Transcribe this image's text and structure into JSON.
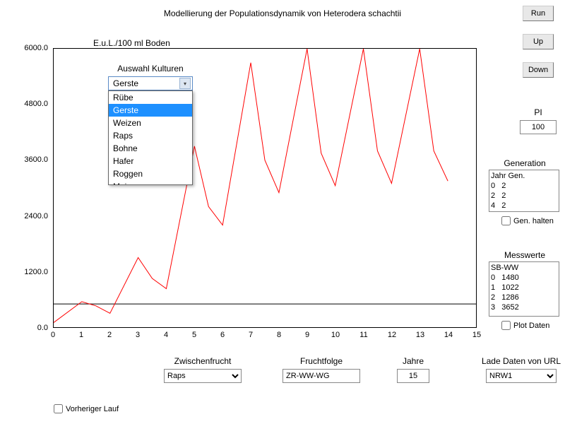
{
  "title": "Modellierung der Populationsdynamik von Heterodera schachtii",
  "ylabel": "E.u.L./100 ml Boden",
  "chart": {
    "type": "line",
    "xlim": [
      0,
      15
    ],
    "ylim": [
      0,
      6000
    ],
    "yticks": [
      0.0,
      1200.0,
      2400.0,
      3600.0,
      4800.0,
      6000.0
    ],
    "xticks": [
      0,
      1,
      2,
      3,
      4,
      5,
      6,
      7,
      8,
      9,
      10,
      11,
      12,
      13,
      14,
      15
    ],
    "line_color": "#ff0000",
    "line_width": 1,
    "ref_line_y": 500,
    "ref_line_color": "#000000",
    "background_color": "#ffffff",
    "border_color": "#000000",
    "series": [
      {
        "x": 0,
        "y": 100
      },
      {
        "x": 1,
        "y": 550
      },
      {
        "x": 1.5,
        "y": 460
      },
      {
        "x": 2,
        "y": 300
      },
      {
        "x": 3,
        "y": 1500
      },
      {
        "x": 3.5,
        "y": 1050
      },
      {
        "x": 4,
        "y": 830
      },
      {
        "x": 5,
        "y": 3900
      },
      {
        "x": 5.5,
        "y": 2600
      },
      {
        "x": 6,
        "y": 2200
      },
      {
        "x": 7,
        "y": 5700
      },
      {
        "x": 7.5,
        "y": 3600
      },
      {
        "x": 8,
        "y": 2900
      },
      {
        "x": 9,
        "y": 6000
      },
      {
        "x": 9.5,
        "y": 3750
      },
      {
        "x": 10,
        "y": 3050
      },
      {
        "x": 11,
        "y": 6000
      },
      {
        "x": 11.5,
        "y": 3800
      },
      {
        "x": 12,
        "y": 3100
      },
      {
        "x": 13,
        "y": 6000
      },
      {
        "x": 13.5,
        "y": 3800
      },
      {
        "x": 14,
        "y": 3150
      }
    ]
  },
  "dropdown": {
    "label": "Auswahl Kulturen",
    "selected": "Gerste",
    "options": [
      "Rübe",
      "Gerste",
      "Weizen",
      "Raps",
      "Bohne",
      "Hafer",
      "Roggen",
      "Mais"
    ]
  },
  "buttons": {
    "run": "Run",
    "up": "Up",
    "down": "Down"
  },
  "pi": {
    "label": "PI",
    "value": "100"
  },
  "generation": {
    "label": "Generation",
    "header": "Jahr  Gen.",
    "rows": [
      "0   2",
      "2   2",
      "4   2"
    ]
  },
  "gen_halten": {
    "label": "Gen. halten",
    "checked": false
  },
  "messwerte": {
    "label": "Messwerte",
    "header": "SB-WW",
    "rows": [
      "0   1480",
      "1   1022",
      "2   1286",
      "3   3652"
    ]
  },
  "plot_daten": {
    "label": "Plot Daten",
    "checked": false
  },
  "bottom": {
    "zwischenfrucht": {
      "label": "Zwischenfrucht",
      "value": "Raps"
    },
    "fruchtfolge": {
      "label": "Fruchtfolge",
      "value": "ZR-WW-WG"
    },
    "jahre": {
      "label": "Jahre",
      "value": "15"
    },
    "lade_url": {
      "label": "Lade Daten von URL",
      "value": "NRW1"
    }
  },
  "vorheriger_lauf": {
    "label": "Vorheriger Lauf",
    "checked": false
  }
}
